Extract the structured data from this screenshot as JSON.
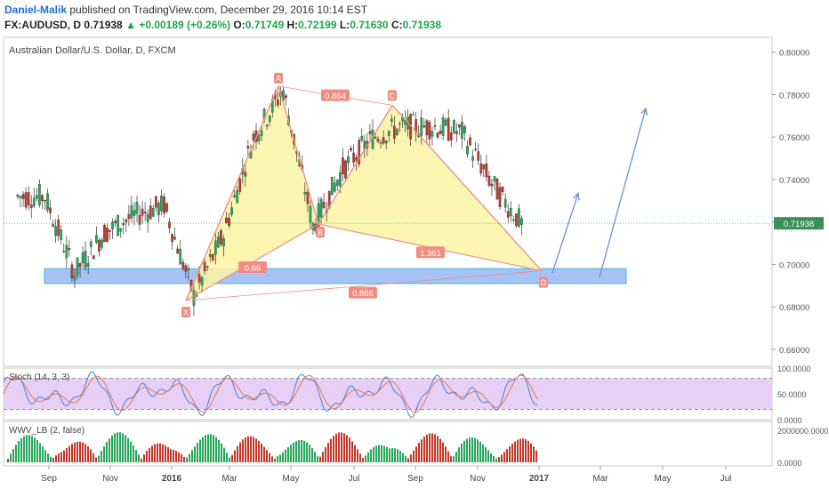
{
  "header": {
    "author": "Daniel-Malik",
    "published_text": "published on TradingView.com, December 29, 2016 10:14 EST",
    "symbol": "FX:AUDUSD, D",
    "last": "0.71938",
    "change_arrow": "▲",
    "change": "+0.00189 (+0.26%)",
    "o_label": "O:",
    "o_value": "0.71749",
    "h_label": "H:",
    "h_value": "0.72199",
    "l_label": "L:",
    "l_value": "0.71630",
    "c_label": "C:",
    "c_value": "0.71938"
  },
  "chart_data": {
    "type": "candlestick",
    "title": "Australian Dollar/U.S. Dollar, D, FXCM",
    "x_tick_labels": [
      "Sep",
      "Nov",
      "2016",
      "Mar",
      "May",
      "Jul",
      "Sep",
      "Nov",
      "2017",
      "Mar",
      "May",
      "Jul"
    ],
    "y_tick_labels": [
      "0.80000",
      "0.78000",
      "0.76000",
      "0.74000",
      "0.72000",
      "0.70000",
      "0.68000",
      "0.66000"
    ],
    "ylim": [
      0.652,
      0.807
    ],
    "current_price_label": "0.71938",
    "price_series": [
      {
        "month": "Aug 2015",
        "close": 0.732
      },
      {
        "month": "Sep 2015",
        "close": 0.696
      },
      {
        "month": "Oct 2015",
        "close": 0.715
      },
      {
        "month": "Nov 2015",
        "close": 0.723
      },
      {
        "month": "Dec 2015",
        "close": 0.728
      },
      {
        "month": "Jan 2016",
        "close": 0.685
      },
      {
        "month": "Feb 2016",
        "close": 0.714
      },
      {
        "month": "Mar 2016",
        "close": 0.76
      },
      {
        "month": "Apr 2016",
        "close": 0.782
      },
      {
        "month": "May 2016",
        "close": 0.718
      },
      {
        "month": "Jun 2016",
        "close": 0.745
      },
      {
        "month": "Jul 2016",
        "close": 0.76
      },
      {
        "month": "Aug 2016",
        "close": 0.765
      },
      {
        "month": "Sep 2016",
        "close": 0.765
      },
      {
        "month": "Oct 2016",
        "close": 0.762
      },
      {
        "month": "Nov 2016",
        "close": 0.738
      },
      {
        "month": "Dec 2016",
        "close": 0.719
      }
    ],
    "pattern_points": [
      {
        "label": "X",
        "date": "Jan 2016",
        "price": 0.683
      },
      {
        "label": "A",
        "date": "Apr 2016",
        "price": 0.784
      },
      {
        "label": "B",
        "date": "May 2016",
        "price": 0.719
      },
      {
        "label": "C",
        "date": "Aug 2016",
        "price": 0.775
      },
      {
        "label": "D",
        "date": "Jan 2017",
        "price": 0.697
      }
    ],
    "ratios": [
      "0.864",
      "0.66",
      "1.361",
      "0.866"
    ],
    "support_zone": {
      "from": 0.691,
      "to": 0.698
    },
    "stochastic": {
      "label": "Stoch (14, 3, 3)",
      "y_tick_labels": [
        "100.0000",
        "50.0000",
        "0.0000"
      ]
    },
    "volume": {
      "label": "WWV_LB (2, false)",
      "y_tick_labels": [
        "2000000.0000",
        "0.0000"
      ]
    },
    "colors": {
      "up": "#26a65b",
      "down": "#c0392b",
      "pattern_fill": "#fdf5a6",
      "pattern_line": "#f08f85",
      "zone": "#8eb4f2",
      "arrow": "#6f8fd0",
      "stoch_band": "#e8cff5"
    }
  }
}
